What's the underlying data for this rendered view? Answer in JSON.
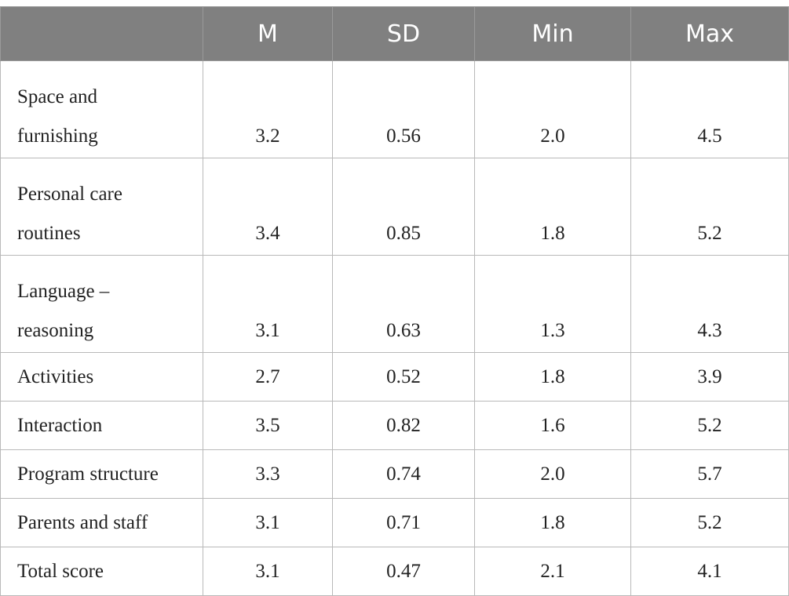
{
  "table": {
    "headers": [
      "",
      "M",
      "SD",
      "Min",
      "Max"
    ],
    "rows": [
      {
        "label_lines": [
          "Space and",
          "furnishing"
        ],
        "m": "3.2",
        "sd": "0.56",
        "min": "2.0",
        "max": "4.5"
      },
      {
        "label_lines": [
          "Personal care",
          "routines"
        ],
        "m": "3.4",
        "sd": "0.85",
        "min": "1.8",
        "max": "5.2"
      },
      {
        "label_lines": [
          "Language –",
          "reasoning"
        ],
        "m": "3.1",
        "sd": "0.63",
        "min": "1.3",
        "max": "4.3"
      },
      {
        "label": "Activities",
        "m": "2.7",
        "sd": "0.52",
        "min": "1.8",
        "max": "3.9"
      },
      {
        "label": "Interaction",
        "m": "3.5",
        "sd": "0.82",
        "min": "1.6",
        "max": "5.2"
      },
      {
        "label": "Program structure",
        "m": "3.3",
        "sd": "0.74",
        "min": "2.0",
        "max": "5.7"
      },
      {
        "label": "Parents and staff",
        "m": "3.1",
        "sd": "0.71",
        "min": "1.8",
        "max": "5.2"
      },
      {
        "label": "Total score",
        "m": "3.1",
        "sd": "0.47",
        "min": "2.1",
        "max": "4.1"
      }
    ]
  }
}
